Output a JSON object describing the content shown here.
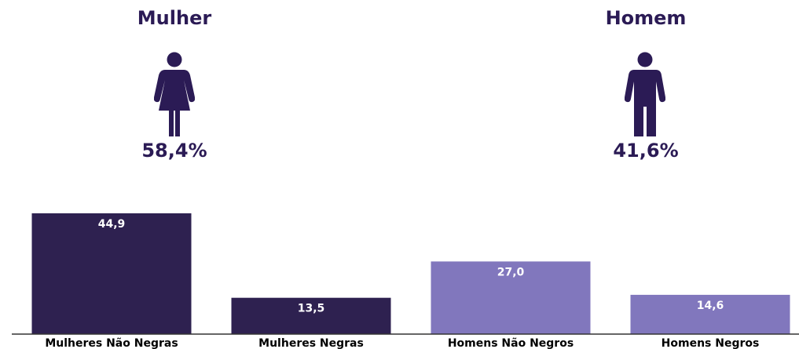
{
  "panels": {
    "women": {
      "title": "Mulher",
      "percent": "58,4%",
      "icon": "woman-icon"
    },
    "men": {
      "title": "Homem",
      "percent": "41,6%",
      "icon": "man-icon"
    }
  },
  "colors": {
    "dark": "#2e2150",
    "light": "#8177bd",
    "text": "#2b1b55"
  },
  "chart_data": {
    "type": "bar",
    "categories": [
      "Mulheres Não Negras",
      "Mulheres Negras",
      "Homens Não Negros",
      "Homens Negros"
    ],
    "values": [
      44.9,
      13.5,
      27.0,
      14.6
    ],
    "value_labels": [
      "44,9",
      "13,5",
      "27,0",
      "14,6"
    ],
    "bar_colors": [
      "#2e2150",
      "#2e2150",
      "#8177bd",
      "#8177bd"
    ],
    "title": "",
    "xlabel": "",
    "ylabel": "",
    "ylim": [
      0,
      50
    ],
    "grid": false,
    "legend": "none"
  }
}
